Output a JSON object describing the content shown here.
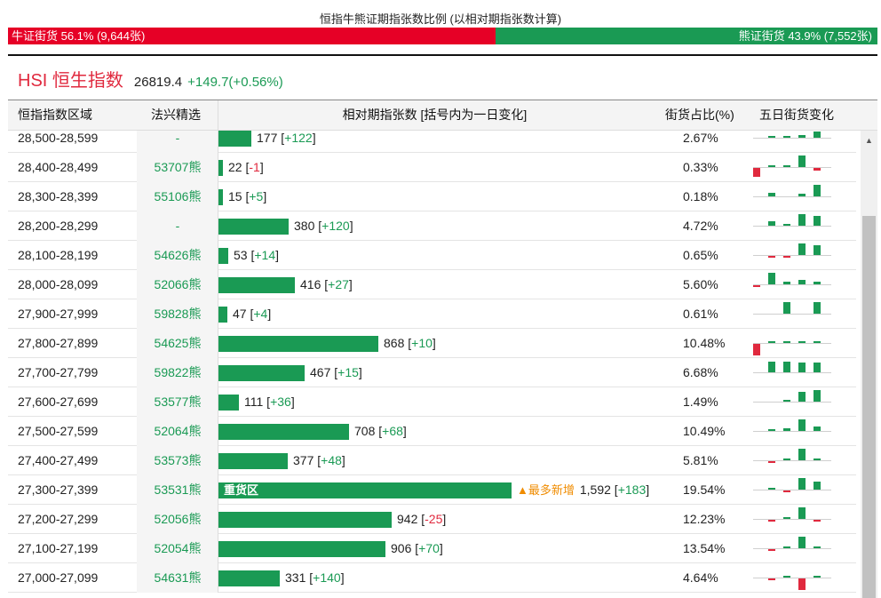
{
  "ratio": {
    "title": "恒指牛熊证期指张数比例 (以相对期指张数计算)",
    "bull_label": "牛证街货 56.1% (9,644张)",
    "bear_label": "熊证街货 43.9% (7,552张)",
    "bull_fraction": 0.561,
    "bull_color": "#e60026",
    "bear_color": "#1a9a54"
  },
  "index": {
    "name": "HSI 恒生指数",
    "price": "26819.4",
    "change": "+149.7(+0.56%)"
  },
  "table": {
    "headers": {
      "range": "恒指指数区域",
      "pick": "法兴精选",
      "count": "相对期指张数 [括号内为一日变化]",
      "ratio": "街货占比(%)",
      "five_day": "五日街货变化"
    },
    "bar_max": 1592,
    "rows": [
      {
        "range": "28,500-28,599",
        "pick": "-",
        "count": "177",
        "count_value": 177,
        "delta": "+122",
        "ratio": "2.67%",
        "five_day": [
          0,
          1,
          2,
          4,
          8
        ]
      },
      {
        "range": "28,400-28,499",
        "pick": "53707熊",
        "count": "22",
        "count_value": 22,
        "delta": "-1",
        "ratio": "0.33%",
        "five_day": [
          -12,
          1,
          2,
          16,
          -4
        ]
      },
      {
        "range": "28,300-28,399",
        "pick": "55106熊",
        "count": "15",
        "count_value": 15,
        "delta": "+5",
        "ratio": "0.18%",
        "five_day": [
          0,
          5,
          0,
          4,
          16
        ]
      },
      {
        "range": "28,200-28,299",
        "pick": "-",
        "count": "380",
        "count_value": 380,
        "delta": "+120",
        "ratio": "4.72%",
        "five_day": [
          0,
          6,
          2,
          16,
          14
        ]
      },
      {
        "range": "28,100-28,199",
        "pick": "54626熊",
        "count": "53",
        "count_value": 53,
        "delta": "+14",
        "ratio": "0.65%",
        "five_day": [
          0,
          -2,
          -2,
          16,
          13
        ]
      },
      {
        "range": "28,000-28,099",
        "pick": "52066熊",
        "count": "416",
        "count_value": 416,
        "delta": "+27",
        "ratio": "5.60%",
        "five_day": [
          -2,
          16,
          4,
          6,
          4
        ]
      },
      {
        "range": "27,900-27,999",
        "pick": "59828熊",
        "count": "47",
        "count_value": 47,
        "delta": "+4",
        "ratio": "0.61%",
        "five_day": [
          0,
          0,
          16,
          0,
          16
        ]
      },
      {
        "range": "27,800-27,899",
        "pick": "54625熊",
        "count": "868",
        "count_value": 868,
        "delta": "+10",
        "ratio": "10.48%",
        "five_day": [
          -16,
          3,
          3,
          3,
          1
        ]
      },
      {
        "range": "27,700-27,799",
        "pick": "59822熊",
        "count": "467",
        "count_value": 467,
        "delta": "+15",
        "ratio": "6.68%",
        "five_day": [
          0,
          15,
          15,
          14,
          13
        ]
      },
      {
        "range": "27,600-27,699",
        "pick": "53577熊",
        "count": "111",
        "count_value": 111,
        "delta": "+36",
        "ratio": "1.49%",
        "five_day": [
          0,
          0,
          1,
          13,
          16
        ]
      },
      {
        "range": "27,500-27,599",
        "pick": "52064熊",
        "count": "708",
        "count_value": 708,
        "delta": "+68",
        "ratio": "10.49%",
        "five_day": [
          0,
          1,
          4,
          16,
          6
        ]
      },
      {
        "range": "27,400-27,499",
        "pick": "53573熊",
        "count": "377",
        "count_value": 377,
        "delta": "+48",
        "ratio": "5.81%",
        "five_day": [
          0,
          -2,
          2,
          16,
          3
        ]
      },
      {
        "range": "27,300-27,399",
        "pick": "53531熊",
        "count": "1,592",
        "count_value": 1592,
        "delta": "+183",
        "ratio": "19.54%",
        "five_day": [
          0,
          3,
          -2,
          16,
          11
        ],
        "in_bar_label": "重货区",
        "tag": "▲最多新增"
      },
      {
        "range": "27,200-27,299",
        "pick": "52056熊",
        "count": "942",
        "count_value": 942,
        "delta": "-25",
        "ratio": "12.23%",
        "five_day": [
          0,
          -2,
          2,
          16,
          -3
        ]
      },
      {
        "range": "27,100-27,199",
        "pick": "52054熊",
        "count": "906",
        "count_value": 906,
        "delta": "+70",
        "ratio": "13.54%",
        "five_day": [
          0,
          -2,
          2,
          16,
          2
        ]
      },
      {
        "range": "27,000-27,099",
        "pick": "54631熊",
        "count": "331",
        "count_value": 331,
        "delta": "+140",
        "ratio": "4.64%",
        "five_day": [
          0,
          -3,
          2,
          -16,
          2
        ]
      }
    ]
  }
}
